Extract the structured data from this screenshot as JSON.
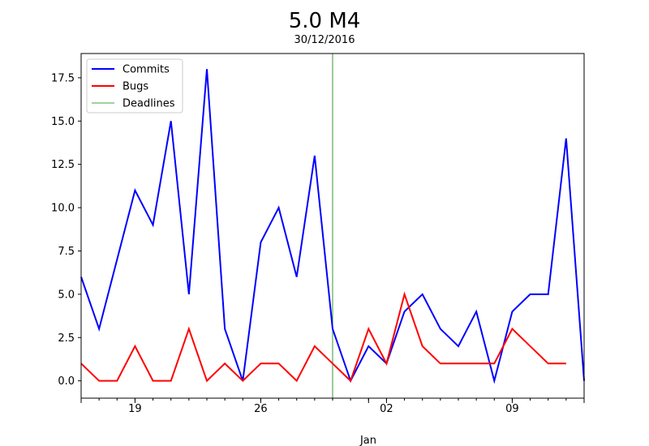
{
  "chart_data": {
    "type": "line",
    "title": "5.0 M4",
    "subtitle": "30/12/2016",
    "xlabel": "Jan",
    "ylabel": "",
    "x_start": "2016-12-16",
    "x_end": "2017-01-13",
    "ylim": [
      -1,
      18.9
    ],
    "yticks": [
      0.0,
      2.5,
      5.0,
      7.5,
      10.0,
      12.5,
      15.0,
      17.5
    ],
    "ytick_labels": [
      "0.0",
      "2.5",
      "5.0",
      "7.5",
      "10.0",
      "12.5",
      "15.0",
      "17.5"
    ],
    "xticks": [
      {
        "date": "2016-12-19",
        "label": "19"
      },
      {
        "date": "2016-12-26",
        "label": "26"
      },
      {
        "date": "2017-01-02",
        "label": "02"
      },
      {
        "date": "2017-01-09",
        "label": "09"
      }
    ],
    "month_tick": {
      "date": "2017-01-01",
      "label": "Jan"
    },
    "series": [
      {
        "name": "Commits",
        "color": "#0000ff",
        "x": [
          "2016-12-16",
          "2016-12-17",
          "2016-12-18",
          "2016-12-19",
          "2016-12-20",
          "2016-12-21",
          "2016-12-22",
          "2016-12-23",
          "2016-12-24",
          "2016-12-25",
          "2016-12-26",
          "2016-12-27",
          "2016-12-28",
          "2016-12-29",
          "2016-12-30",
          "2016-12-31",
          "2017-01-01",
          "2017-01-02",
          "2017-01-03",
          "2017-01-04",
          "2017-01-05",
          "2017-01-06",
          "2017-01-07",
          "2017-01-08",
          "2017-01-09",
          "2017-01-10",
          "2017-01-11",
          "2017-01-12",
          "2017-01-13"
        ],
        "values": [
          6,
          3,
          7,
          11,
          9,
          15,
          5,
          18,
          3,
          0,
          8,
          10,
          6,
          13,
          3,
          0,
          2,
          1,
          4,
          5,
          3,
          2,
          4,
          0,
          4,
          5,
          5,
          14,
          0
        ]
      },
      {
        "name": "Bugs",
        "color": "#ff0000",
        "x": [
          "2016-12-16",
          "2016-12-17",
          "2016-12-18",
          "2016-12-19",
          "2016-12-20",
          "2016-12-21",
          "2016-12-22",
          "2016-12-23",
          "2016-12-24",
          "2016-12-25",
          "2016-12-26",
          "2016-12-27",
          "2016-12-28",
          "2016-12-29",
          "2016-12-30",
          "2016-12-31",
          "2017-01-01",
          "2017-01-02",
          "2017-01-03",
          "2017-01-04",
          "2017-01-05",
          "2017-01-06",
          "2017-01-07",
          "2017-01-08",
          "2017-01-09",
          "2017-01-10",
          "2017-01-11",
          "2017-01-12"
        ],
        "values": [
          1,
          0,
          0,
          2,
          0,
          0,
          3,
          0,
          1,
          0,
          1,
          1,
          0,
          2,
          1,
          0,
          3,
          1,
          5,
          2,
          1,
          1,
          1,
          1,
          3,
          2,
          1,
          1
        ]
      }
    ],
    "deadlines": {
      "name": "Deadlines",
      "color": "#008000",
      "dates": [
        "2016-12-30"
      ]
    },
    "legend": {
      "position": "top-left",
      "entries": [
        "Commits",
        "Bugs",
        "Deadlines"
      ]
    },
    "grid": false
  }
}
